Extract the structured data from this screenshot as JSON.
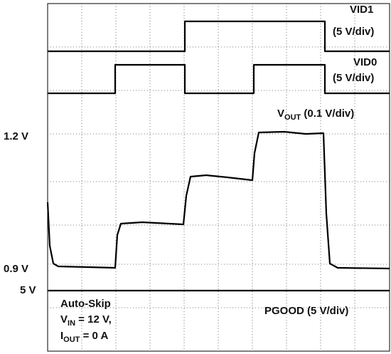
{
  "axis_labels": {
    "upper": "1.2 V",
    "lower": "0.9 V",
    "pgood_level": "5 V"
  },
  "traces": {
    "vid1": {
      "name": "VID1",
      "scale": "(5 V/div)"
    },
    "vid0": {
      "name": "VID0",
      "scale": "(5 V/div)"
    },
    "vout": {
      "symbol": "V",
      "subscript": "OUT",
      "scale": " (0.1 V/div)"
    },
    "pgood": {
      "name": "PGOOD (5 V/div)"
    }
  },
  "conditions": {
    "mode": "Auto-Skip",
    "vin": {
      "symbol": "V",
      "subscript": "IN",
      "value": " = 12 V,"
    },
    "iout": {
      "symbol": "I",
      "subscript": "OUT",
      "value": " = 0 A"
    }
  }
}
